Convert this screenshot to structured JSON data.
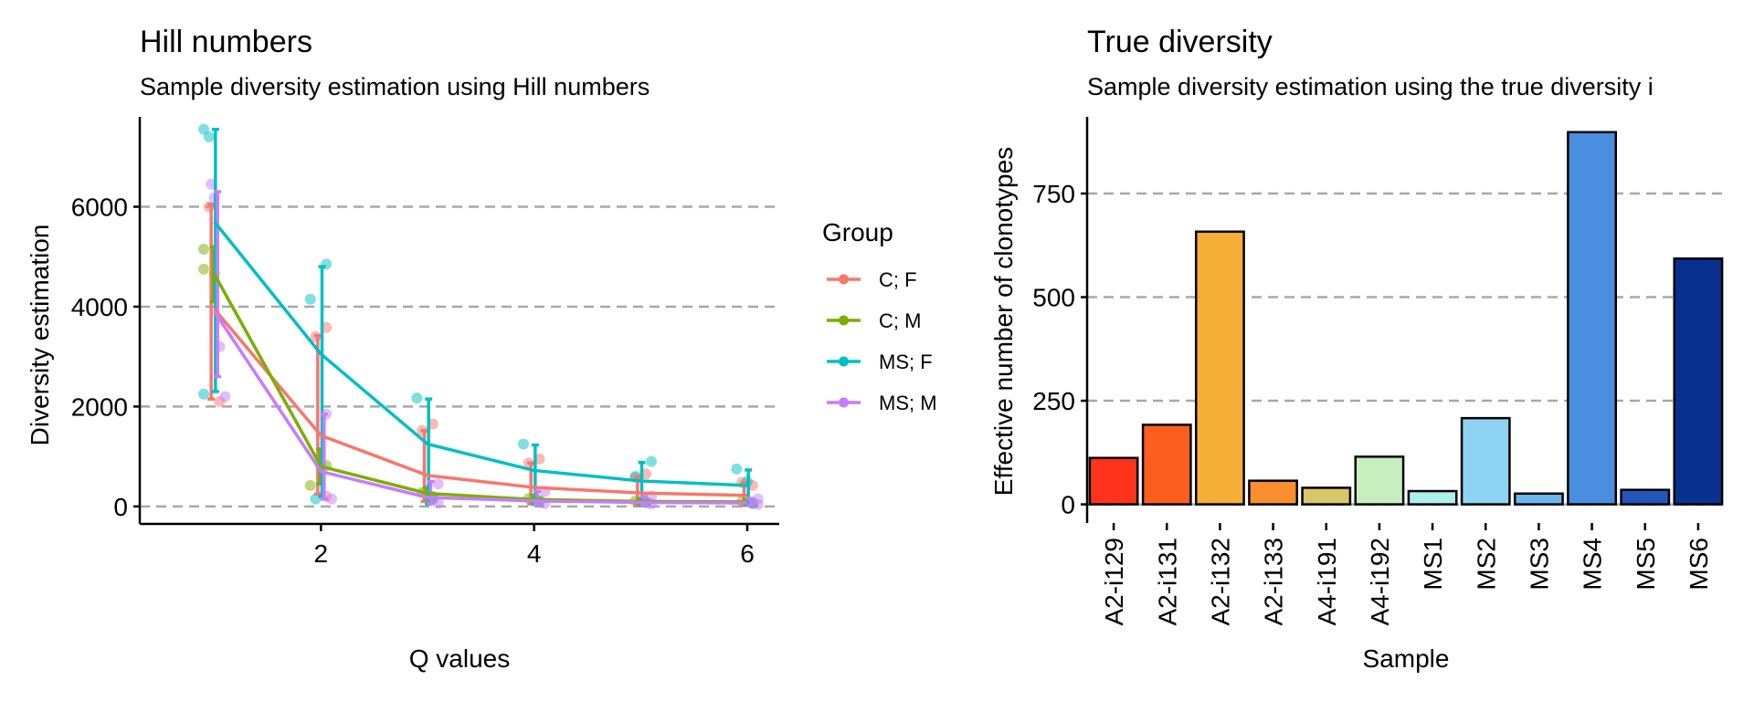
{
  "chart_data": [
    {
      "type": "line",
      "title": "Hill numbers",
      "subtitle": "Sample diversity estimation using Hill numbers",
      "xlabel": "Q values",
      "ylabel": "Diversity estimation",
      "xlim": [
        0.3,
        6.3
      ],
      "ylim": [
        -350,
        7800
      ],
      "xticks": [
        2,
        4,
        6
      ],
      "yticks": [
        0,
        2000,
        4000,
        6000
      ],
      "grid": "horizontal dashed",
      "legend": {
        "title": "Group",
        "placement": "right",
        "entries": [
          "C; F",
          "C; M",
          "MS; F",
          "MS; M"
        ]
      },
      "x": [
        1,
        2,
        3,
        4,
        5,
        6
      ],
      "series": [
        {
          "name": "C; F",
          "color": "#F8766D",
          "values": [
            3950,
            1420,
            620,
            380,
            270,
            220
          ],
          "error_upper": [
            6050,
            3420,
            1520,
            870,
            590,
            480
          ],
          "error_lower": [
            2150,
            250,
            100,
            50,
            30,
            20
          ],
          "points": [
            [
              0.95,
              6000
            ],
            [
              1.05,
              2100
            ],
            [
              1.95,
              3400
            ],
            [
              2.05,
              3580
            ],
            [
              2.05,
              200
            ],
            [
              2.95,
              1520
            ],
            [
              3.05,
              1650
            ],
            [
              3.05,
              150
            ],
            [
              3.95,
              870
            ],
            [
              4.05,
              950
            ],
            [
              4.05,
              100
            ],
            [
              4.95,
              580
            ],
            [
              5.05,
              650
            ],
            [
              5.05,
              80
            ],
            [
              5.95,
              480
            ],
            [
              6.05,
              420
            ],
            [
              6.05,
              60
            ]
          ]
        },
        {
          "name": "C; M",
          "color": "#7CAE00",
          "values": [
            4650,
            800,
            260,
            140,
            100,
            90
          ],
          "error_upper": [
            5200,
            1150,
            380,
            220,
            160,
            140
          ],
          "error_lower": [
            4100,
            450,
            150,
            70,
            50,
            40
          ],
          "points": [
            [
              0.9,
              5150
            ],
            [
              0.9,
              4750
            ],
            [
              1.0,
              4650
            ],
            [
              1.9,
              420
            ],
            [
              2.05,
              820
            ],
            [
              2.95,
              280
            ],
            [
              3.05,
              200
            ],
            [
              3.95,
              160
            ],
            [
              4.05,
              120
            ],
            [
              4.95,
              110
            ],
            [
              5.05,
              90
            ],
            [
              5.95,
              100
            ],
            [
              6.05,
              80
            ]
          ]
        },
        {
          "name": "MS; F",
          "color": "#00BFC4",
          "values": [
            5700,
            3050,
            1250,
            720,
            510,
            420
          ],
          "error_upper": [
            7550,
            4800,
            2150,
            1230,
            880,
            730
          ],
          "error_lower": [
            2300,
            200,
            50,
            40,
            30,
            30
          ],
          "points": [
            [
              0.9,
              7550
            ],
            [
              0.95,
              7400
            ],
            [
              0.9,
              2250
            ],
            [
              1.9,
              4150
            ],
            [
              2.05,
              4850
            ],
            [
              1.95,
              150
            ],
            [
              2.9,
              2170
            ],
            [
              3.05,
              150
            ],
            [
              3.9,
              1250
            ],
            [
              4.05,
              100
            ],
            [
              4.95,
              600
            ],
            [
              5.1,
              900
            ],
            [
              5.05,
              80
            ],
            [
              5.9,
              750
            ],
            [
              6.0,
              500
            ],
            [
              6.05,
              60
            ]
          ]
        },
        {
          "name": "MS; M",
          "color": "#C77CFF",
          "values": [
            3900,
            700,
            180,
            110,
            80,
            70
          ],
          "error_upper": [
            6300,
            1850,
            500,
            300,
            200,
            160
          ],
          "error_lower": [
            2600,
            150,
            60,
            40,
            30,
            20
          ],
          "points": [
            [
              0.97,
              6450
            ],
            [
              1.0,
              6180
            ],
            [
              1.05,
              3200
            ],
            [
              1.1,
              2200
            ],
            [
              2.05,
              1850
            ],
            [
              2.1,
              150
            ],
            [
              3.1,
              450
            ],
            [
              3.1,
              70
            ],
            [
              4.1,
              300
            ],
            [
              4.1,
              60
            ],
            [
              5.1,
              200
            ],
            [
              5.1,
              50
            ],
            [
              6.1,
              150
            ],
            [
              6.1,
              40
            ]
          ]
        }
      ]
    },
    {
      "type": "bar",
      "title": "True diversity",
      "subtitle": "Sample diversity estimation using the true diversity i",
      "xlabel": "Sample",
      "ylabel": "Effective number of clonotypes",
      "ylim": [
        -45,
        935
      ],
      "yticks": [
        0,
        250,
        500,
        750
      ],
      "grid": "horizontal dashed",
      "categories": [
        "A2-i129",
        "A2-i131",
        "A2-i132",
        "A2-i133",
        "A4-i191",
        "A4-i192",
        "MS1",
        "MS2",
        "MS3",
        "MS4",
        "MS5",
        "MS6"
      ],
      "values": [
        112,
        192,
        658,
        57,
        40,
        115,
        32,
        208,
        26,
        898,
        35,
        593
      ],
      "colors": [
        "#FF331C",
        "#FC5E20",
        "#F5AE36",
        "#F98E2F",
        "#D8C66C",
        "#C8EEBF",
        "#AEF0EC",
        "#8FD3F2",
        "#6CB6EE",
        "#4A8FDF",
        "#2456B9",
        "#08318E"
      ]
    }
  ]
}
